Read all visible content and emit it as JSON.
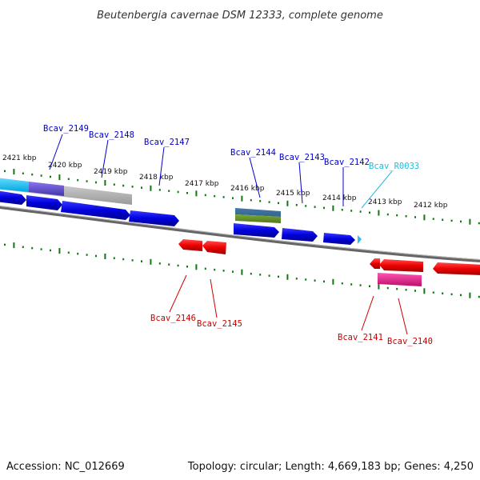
{
  "title": "Beutenbergia cavernae DSM 12333, complete genome",
  "footer": {
    "accession": "Accession: NC_012669",
    "summary": "Topology: circular; Length: 4,669,183 bp; Genes: 4,250"
  },
  "kbp_labels": [
    "2421 kbp",
    "2420 kbp",
    "2419 kbp",
    "2418 kbp",
    "2417 kbp",
    "2416 kbp",
    "2415 kbp",
    "2414 kbp",
    "2413 kbp",
    "2412 kbp"
  ],
  "gene_labels_top": [
    "Bcav_2149",
    "Bcav_2148",
    "Bcav_2147",
    "Bcav_2144",
    "Bcav_2143",
    "Bcav_2142",
    "Bcav_R0033"
  ],
  "gene_labels_bottom": [
    "Bcav_2146",
    "Bcav_2145",
    "Bcav_2141",
    "Bcav_2140"
  ],
  "colors": {
    "forward_gene": "#0000dd",
    "reverse_gene": "#ee0000",
    "forward_label": "#0000cc",
    "reverse_label": "#cc0000",
    "rna_label": "#22bbdd",
    "tick": "#117711",
    "backbone": "#777777",
    "pink_gene": "#e0208a"
  }
}
